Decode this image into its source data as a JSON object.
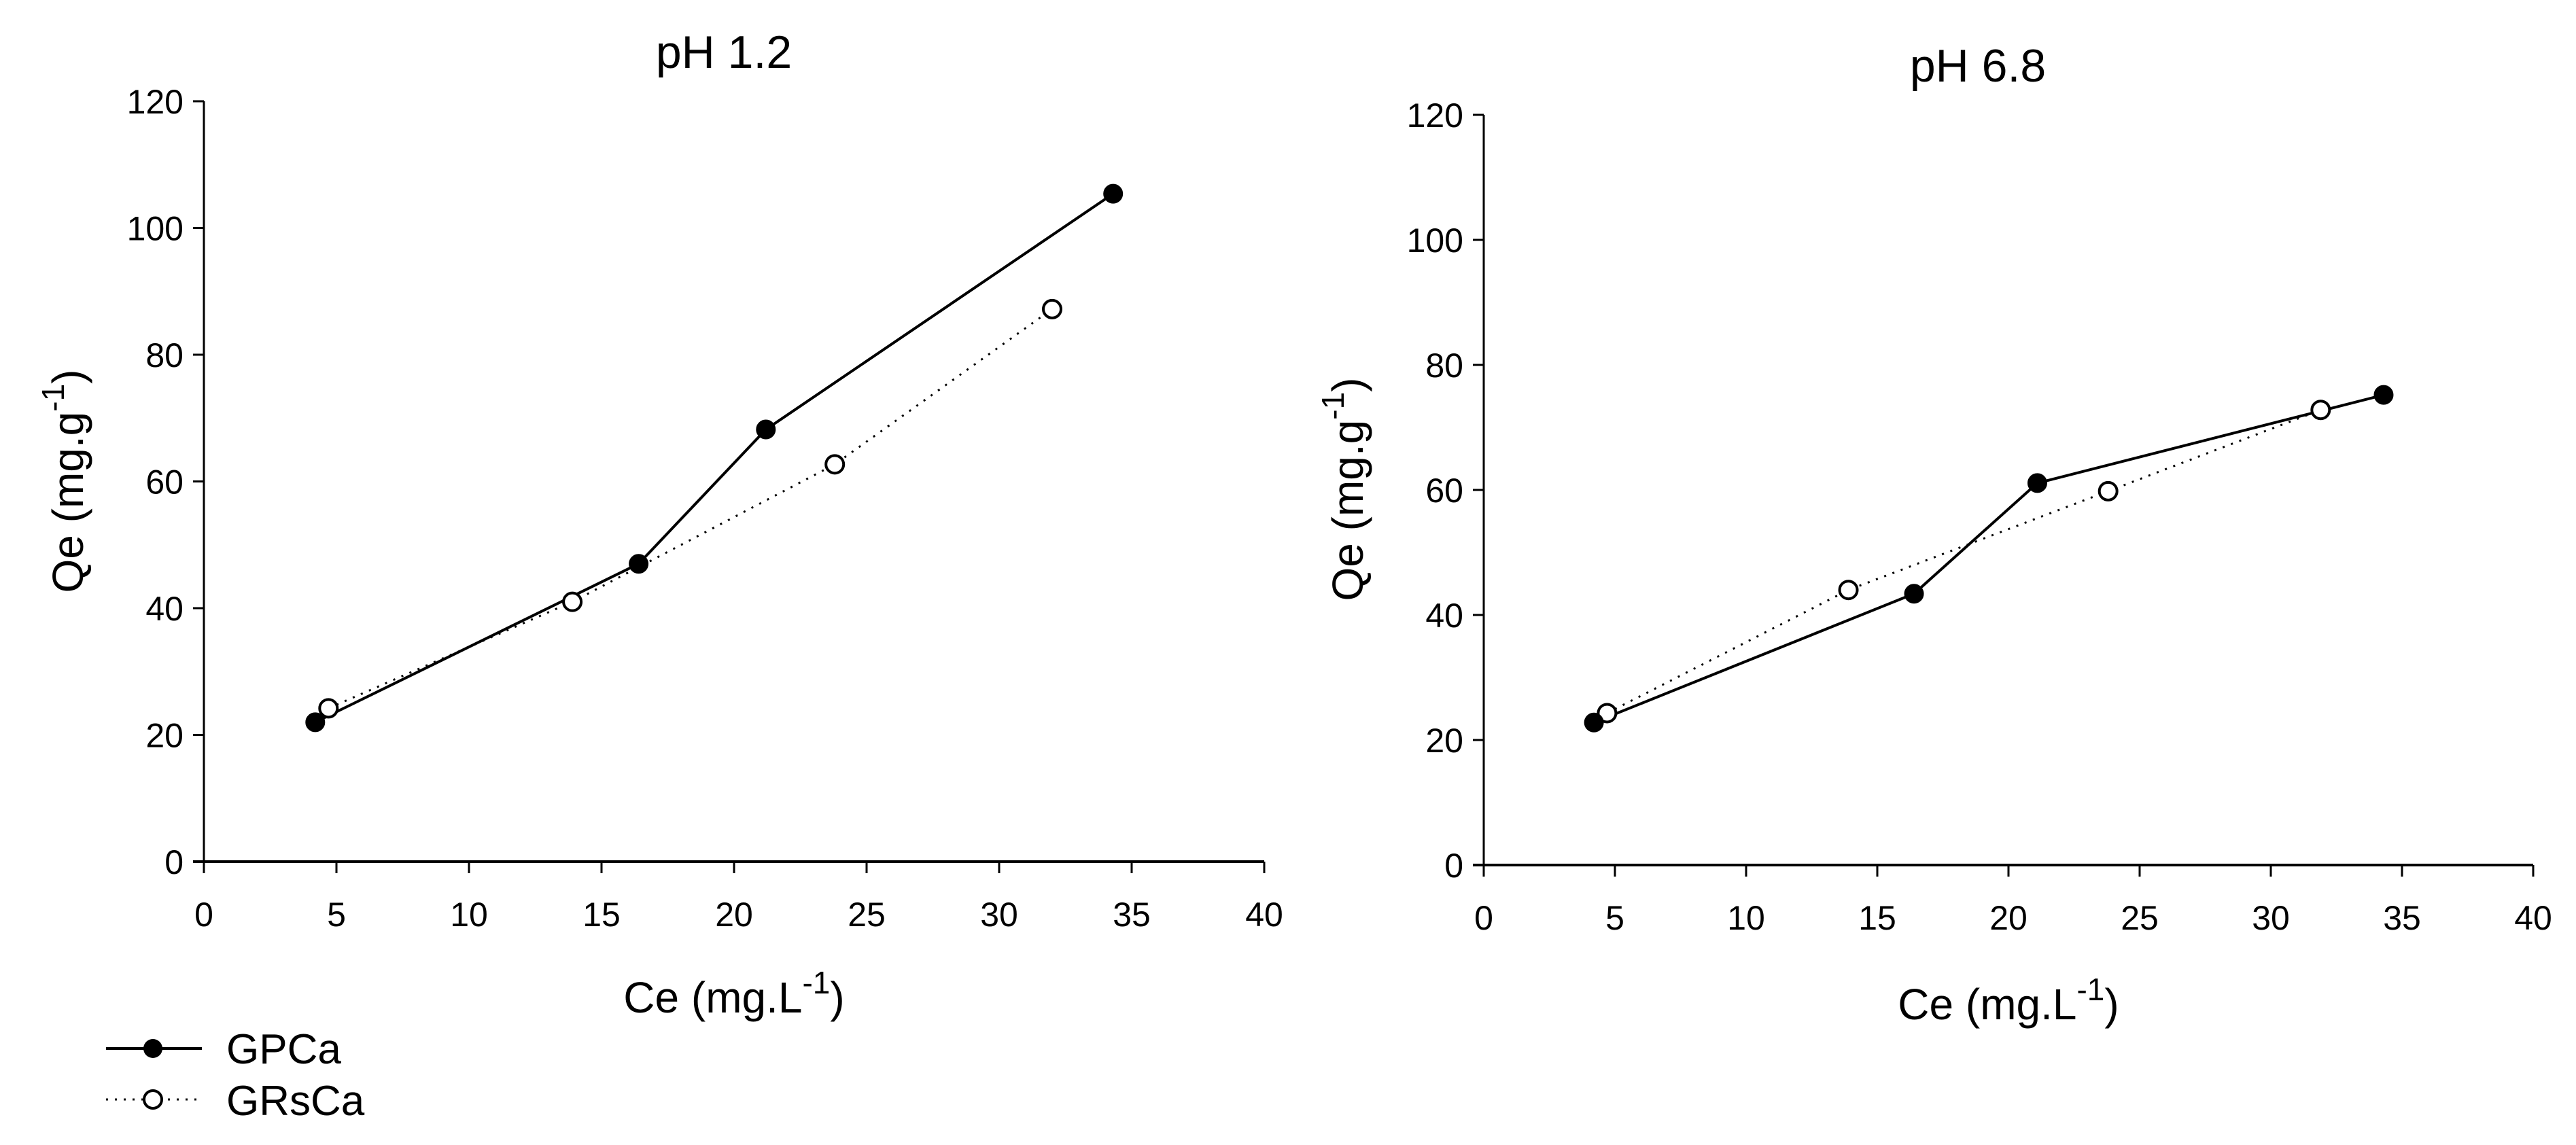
{
  "chart_data": [
    {
      "type": "line",
      "title": "pH 1.2",
      "xlabel": "Ce (mg.L-1)",
      "xlabel_main": "Ce (mg.L",
      "xlabel_sup": "-1",
      "xlabel_close": ")",
      "ylabel": "Qe (mg.g-1)",
      "ylabel_main": "Qe (mg.g",
      "ylabel_sup": "-1",
      "ylabel_close": ")",
      "xlim": [
        0,
        40
      ],
      "ylim": [
        0,
        120
      ],
      "xticks": [
        0,
        5,
        10,
        15,
        20,
        25,
        30,
        35,
        40
      ],
      "yticks": [
        0,
        20,
        40,
        60,
        80,
        100,
        120
      ],
      "grid": false,
      "series": [
        {
          "name": "GPCa",
          "marker": "filled-circle",
          "line": "solid",
          "x": [
            4.2,
            16.4,
            21.2,
            34.3
          ],
          "y": [
            22.0,
            47.0,
            68.2,
            105.4
          ]
        },
        {
          "name": "GRsCa",
          "marker": "open-circle",
          "line": "dotted",
          "x": [
            4.7,
            13.9,
            23.8,
            32.0
          ],
          "y": [
            24.2,
            41.0,
            62.7,
            87.2
          ]
        }
      ]
    },
    {
      "type": "line",
      "title": "pH 6.8",
      "xlabel": "Ce (mg.L-1)",
      "xlabel_main": "Ce (mg.L",
      "xlabel_sup": "-1",
      "xlabel_close": ")",
      "ylabel": "Qe (mg.g-1)",
      "ylabel_main": "Qe (mg.g",
      "ylabel_sup": "-1",
      "ylabel_close": ")",
      "xlim": [
        0,
        40
      ],
      "ylim": [
        0,
        120
      ],
      "xticks": [
        0,
        5,
        10,
        15,
        20,
        25,
        30,
        35,
        40
      ],
      "yticks": [
        0,
        20,
        40,
        60,
        80,
        100,
        120
      ],
      "grid": false,
      "series": [
        {
          "name": "GPCa",
          "marker": "filled-circle",
          "line": "solid",
          "x": [
            4.2,
            16.4,
            21.1,
            34.3
          ],
          "y": [
            22.8,
            43.4,
            61.1,
            75.2
          ]
        },
        {
          "name": "GRsCa",
          "marker": "open-circle",
          "line": "dotted",
          "x": [
            4.7,
            13.9,
            23.8,
            31.9
          ],
          "y": [
            24.3,
            44.0,
            59.8,
            72.8
          ]
        }
      ]
    }
  ],
  "legend": {
    "position": "bottom-left",
    "items": [
      {
        "label": "GPCa",
        "marker": "filled-circle",
        "line": "solid"
      },
      {
        "label": "GRsCa",
        "marker": "open-circle",
        "line": "dotted"
      }
    ]
  },
  "colors": {
    "line": "#000000",
    "axis": "#000000",
    "background": "#ffffff"
  }
}
